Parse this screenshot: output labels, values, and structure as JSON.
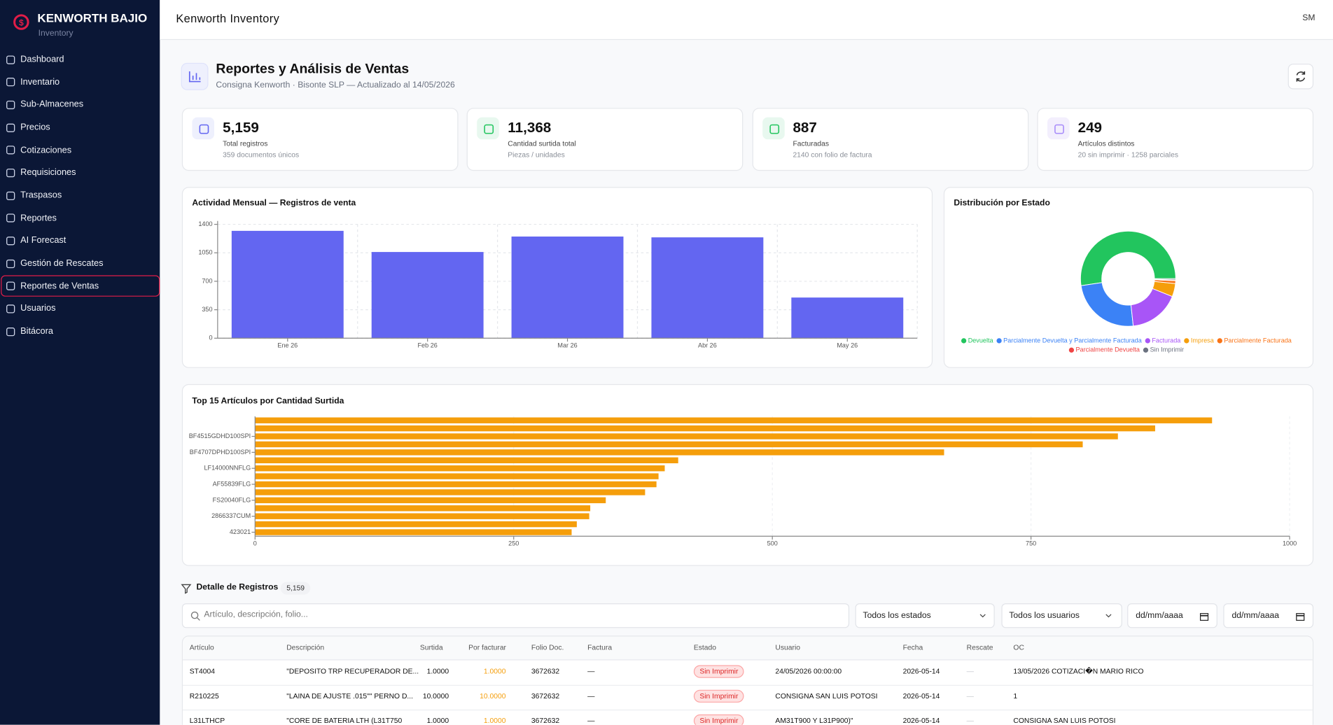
{
  "sidebar": {
    "brand": "KENWORTH BAJIO",
    "subtitle": "Inventory",
    "nav": [
      {
        "label": "Dashboard"
      },
      {
        "label": "Inventario"
      },
      {
        "label": "Sub-Almacenes"
      },
      {
        "label": "Precios"
      },
      {
        "label": "Cotizaciones"
      },
      {
        "label": "Requisiciones"
      },
      {
        "label": "Traspasos"
      },
      {
        "label": "Reportes"
      },
      {
        "label": "AI Forecast"
      },
      {
        "label": "Gestión de Rescates"
      },
      {
        "label": "Reportes de Ventas",
        "active": true
      },
      {
        "label": "Usuarios"
      },
      {
        "label": "Bitácora"
      }
    ]
  },
  "header": {
    "title": "Kenworth Inventory",
    "user": "SM"
  },
  "page": {
    "title": "Reportes y Análisis de Ventas",
    "subtitle": "Consigna Kenworth · Bisonte SLP — Actualizado al 14/05/2026"
  },
  "kpis": [
    {
      "value": "5,159",
      "label": "Total registros",
      "note": "359 documentos únicos"
    },
    {
      "value": "11,368",
      "label": "Cantidad surtida total",
      "note": "Piezas / unidades"
    },
    {
      "value": "887",
      "label": "Facturadas",
      "note": "2140 con folio de factura"
    },
    {
      "value": "249",
      "label": "Artículos distintos",
      "note": "20 sin imprimir · 1258 parciales"
    }
  ],
  "chart_data": [
    {
      "type": "bar",
      "title": "Actividad Mensual — Registros de venta",
      "categories": [
        "Ene 26",
        "Feb 26",
        "Mar 26",
        "Abr 26",
        "May 26"
      ],
      "values": [
        1320,
        1060,
        1250,
        1240,
        500
      ],
      "color": "#6366f1",
      "ylim": [
        0,
        1400
      ],
      "yticks": [
        0,
        350,
        700,
        1050,
        1400
      ],
      "grid": true
    },
    {
      "type": "donut",
      "title": "Distribución por Estado",
      "categories": [
        "Devuelta",
        "Parcialmente Devuelta y Parcialmente Facturada",
        "Facturada",
        "Impresa",
        "Parcialmente Facturada",
        "Parcialmente Devuelta",
        "Sin Imprimir"
      ],
      "values": [
        2700,
        1258,
        887,
        230,
        50,
        14,
        20
      ],
      "colors": [
        "#22c55e",
        "#3b82f6",
        "#a855f7",
        "#f59e0b",
        "#f97316",
        "#ef4444",
        "#6b7280"
      ]
    },
    {
      "type": "hbar",
      "title": "Top 15 Artículos por Cantidad Surtida",
      "categories": [
        null,
        null,
        "BF4515GDHD100SPI",
        null,
        "BF4707DPHD100SPI",
        null,
        "LF14000NNFLG",
        null,
        "AF55839FLG",
        null,
        "FS20040FLG",
        null,
        "2866337CUM",
        null,
        "423021"
      ],
      "values": [
        925,
        870,
        834,
        800,
        666,
        409,
        396,
        390,
        388,
        377,
        339,
        324,
        323,
        311,
        306
      ],
      "color": "#f59e0b",
      "xlim": [
        0,
        1000
      ],
      "xticks": [
        0,
        250,
        500,
        750,
        1000
      ],
      "grid": true
    }
  ],
  "filters": {
    "title": "Detalle de Registros",
    "count": "5,159",
    "search_placeholder": "Artículo, descripción, folio...",
    "status": "Todos los estados",
    "user": "Todos los usuarios",
    "date_from": "dd/mm/aaaa",
    "date_to": "dd/mm/aaaa"
  },
  "table": {
    "columns": [
      "Artículo",
      "Descripción",
      "Surtida",
      "Por facturar",
      "Folio Doc.",
      "Factura",
      "Estado",
      "Usuario",
      "Fecha",
      "Rescate",
      "OC"
    ],
    "rows": [
      [
        "ST4004",
        "\"DEPOSITO TRP RECUPERADOR DE...",
        "1.0000",
        "1.0000",
        "3672632",
        "—",
        "Sin Imprimir",
        "24/05/2026 00:00:00",
        "2026-05-14",
        "—",
        "13/05/2026 COTIZACI�N MARIO RICO"
      ],
      [
        "R210225",
        "\"LAINA DE AJUSTE .015\"\" PERNO D...",
        "10.0000",
        "10.0000",
        "3672632",
        "—",
        "Sin Imprimir",
        "CONSIGNA SAN LUIS POTOSI",
        "2026-05-14",
        "—",
        "1"
      ],
      [
        "L31LTHCP",
        "\"CORE DE BATERIA LTH (L31T750",
        "1.0000",
        "1.0000",
        "3672632",
        "—",
        "Sin Imprimir",
        "AM31T900 Y L31P900)\"",
        "2026-05-14",
        "—",
        "CONSIGNA SAN LUIS POTOSI"
      ]
    ]
  }
}
